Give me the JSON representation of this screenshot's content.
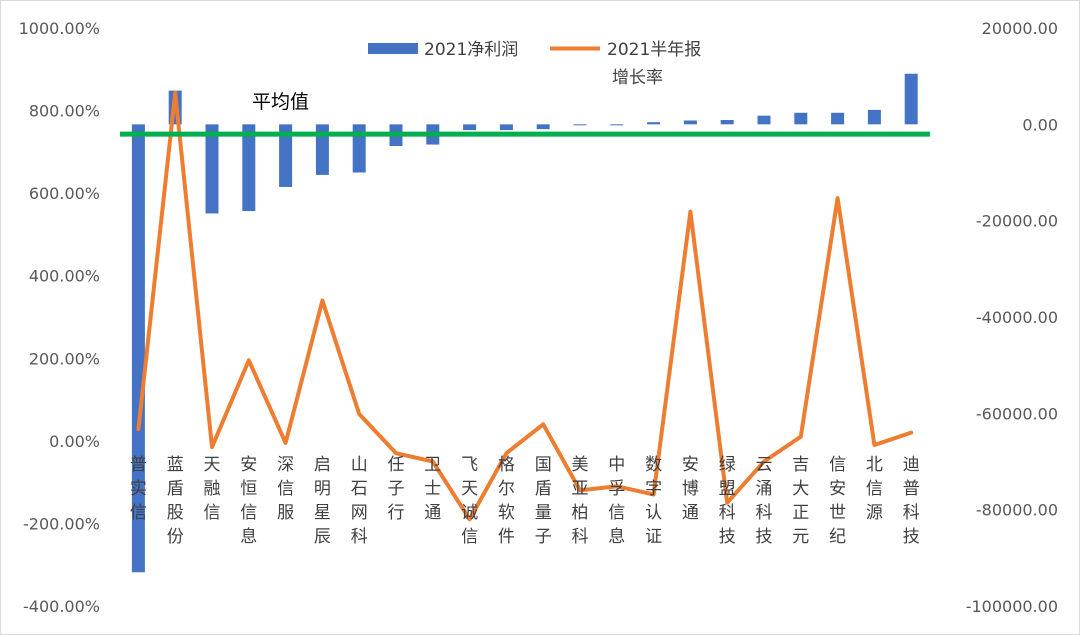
{
  "chart_data": {
    "type": "bar",
    "categories": [
      "普实信",
      "蓝盾股份",
      "天融信",
      "安恒信息",
      "深信服",
      "启明星辰",
      "山石网科",
      "任子行",
      "卫士通",
      "飞天诚信",
      "格尔软件",
      "国盾量子",
      "美亚柏科",
      "中孚信息",
      "数字认证",
      "安博通",
      "绿盟科技",
      "云涌科技",
      "吉大正元",
      "信安世纪",
      "北信源",
      "迪普科技"
    ],
    "series": [
      {
        "name": "2021净利润",
        "axis": "right",
        "color": "#4472C4",
        "values": [
          -93000,
          7000,
          -18500,
          -18000,
          -13000,
          -10500,
          -10000,
          -4500,
          -4200,
          -1200,
          -1200,
          -1000,
          -150,
          -150,
          450,
          800,
          900,
          1800,
          2400,
          2400,
          3000,
          10500
        ]
      },
      {
        "name": "2021半年报增长率",
        "legend_line2": "增长率",
        "axis": "left",
        "color": "#ED7D31",
        "values": [
          28,
          843,
          -15,
          195,
          -5,
          340,
          65,
          -30,
          -50,
          -190,
          -30,
          40,
          -120,
          -110,
          -130,
          555,
          -150,
          -50,
          10,
          588,
          -10,
          20
        ]
      }
    ],
    "y_left": {
      "min": -400,
      "max": 1000,
      "ticks": [
        "1000.00%",
        "800.00%",
        "600.00%",
        "400.00%",
        "200.00%",
        "0.00%",
        "-200.00%",
        "-400.00%"
      ]
    },
    "y_right": {
      "min": -100000,
      "max": 20000,
      "ticks": [
        "20000.00",
        "0.00",
        "-20000.00",
        "-40000.00",
        "-60000.00",
        "-80000.00",
        "-100000.00"
      ]
    },
    "average_line": {
      "label": "平均值",
      "value_left": 743,
      "color": "#00B050"
    },
    "legend": {
      "bar_label": "2021净利润",
      "line_label_1": "2021半年报",
      "line_label_2": "增长率",
      "placement": "top-center"
    },
    "grid": false
  }
}
